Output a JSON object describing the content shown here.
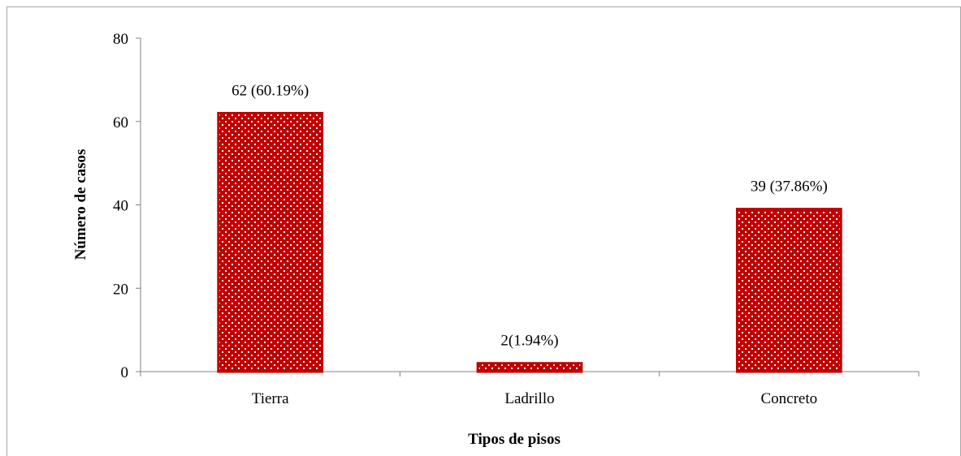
{
  "chart_data": {
    "type": "bar",
    "categories": [
      "Tierra",
      "Ladrillo",
      "Concreto"
    ],
    "values": [
      62,
      2,
      39
    ],
    "data_labels": [
      "62 (60.19%)",
      "2(1.94%)",
      "39 (37.86%)"
    ],
    "xlabel": "Tipos de pisos",
    "ylabel": "Número de casos",
    "ylim": [
      0,
      80
    ],
    "yticks": [
      0,
      20,
      40,
      60,
      80
    ],
    "ytick_labels": [
      "0",
      "20",
      "40",
      "60",
      "80"
    ],
    "grid": false,
    "legend": "none",
    "bar_color": "#c00000",
    "bar_pattern": "white-checkered-dots"
  }
}
